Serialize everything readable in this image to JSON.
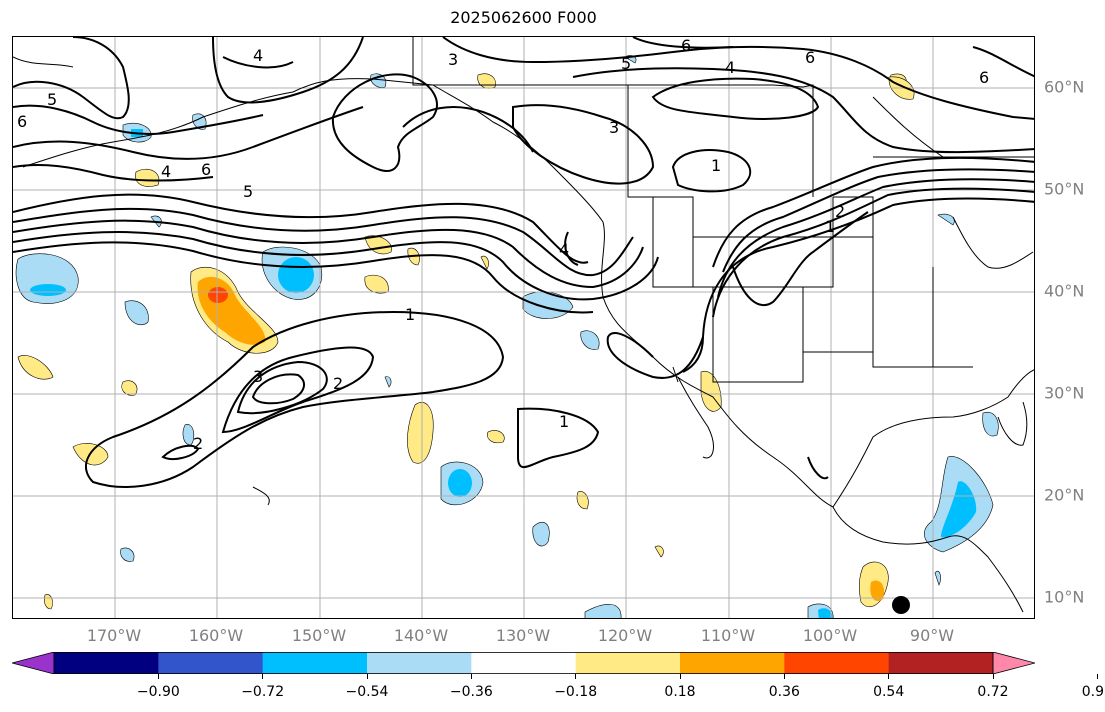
{
  "title": "2025062600 F000",
  "longitude_labels": [
    "170°W",
    "160°W",
    "150°W",
    "140°W",
    "130°W",
    "120°W",
    "110°W",
    "100°W",
    "90°W"
  ],
  "latitude_labels": [
    "60°N",
    "50°N",
    "40°N",
    "30°N",
    "20°N",
    "10°N"
  ],
  "colorbar": {
    "tick_labels": [
      "−0.90",
      "−0.72",
      "−0.54",
      "−0.36",
      "−0.18",
      "0.18",
      "0.36",
      "0.54",
      "0.72",
      "0.90"
    ],
    "colors": [
      "#9933cc",
      "#000080",
      "#3355cc",
      "#00bfff",
      "#aadcf5",
      "#ffffff",
      "#ffea85",
      "#ffa500",
      "#ff4500",
      "#b22222",
      "#ff88aa"
    ],
    "extend": "both"
  },
  "contour_labels": [
    "1",
    "1",
    "1",
    "1",
    "2",
    "2",
    "2",
    "3",
    "3",
    "3",
    "4",
    "4",
    "4",
    "4",
    "5",
    "5",
    "5",
    "6",
    "6",
    "6",
    "6",
    "6"
  ],
  "marker": "filled black circle"
}
